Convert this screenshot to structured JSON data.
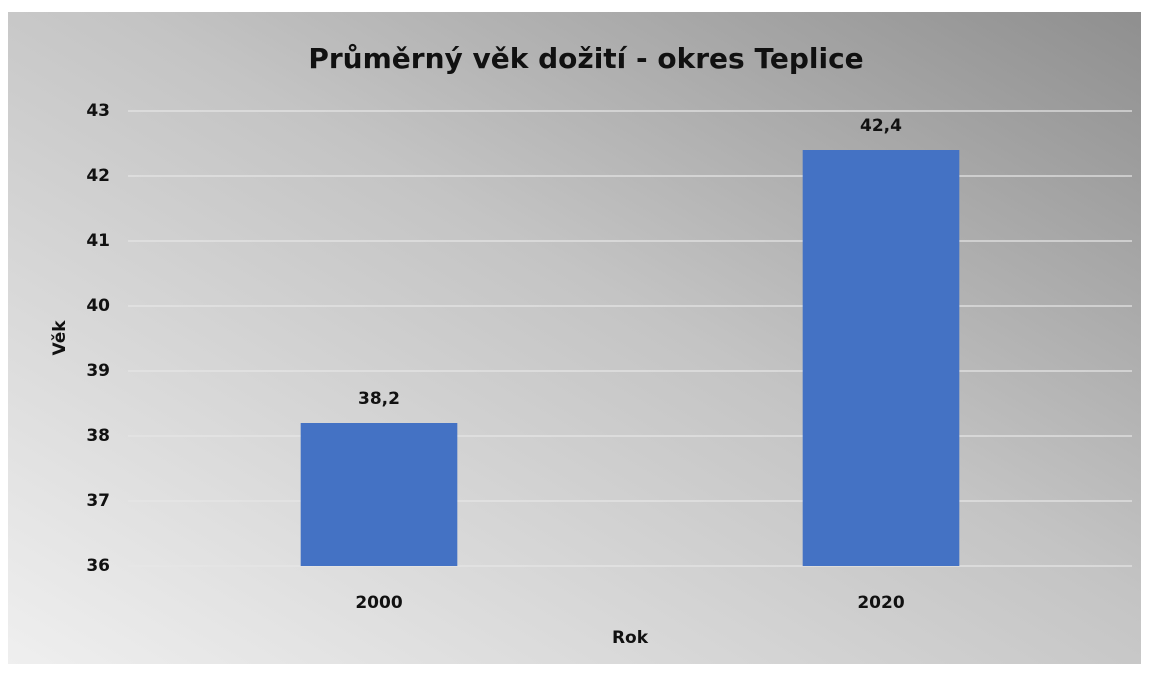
{
  "chart_data": {
    "type": "bar",
    "title": "Průměrný věk dožití - okres Teplice",
    "x_label": "Rok",
    "y_label": "Věk",
    "categories": [
      "2000",
      "2020"
    ],
    "values": [
      38.2,
      42.4
    ],
    "value_labels": [
      "38,2",
      "42,4"
    ],
    "color": "#4472c4",
    "ylim": [
      36,
      43
    ],
    "yticks": [
      36,
      37,
      38,
      39,
      40,
      41,
      42,
      43
    ],
    "grid": true
  }
}
